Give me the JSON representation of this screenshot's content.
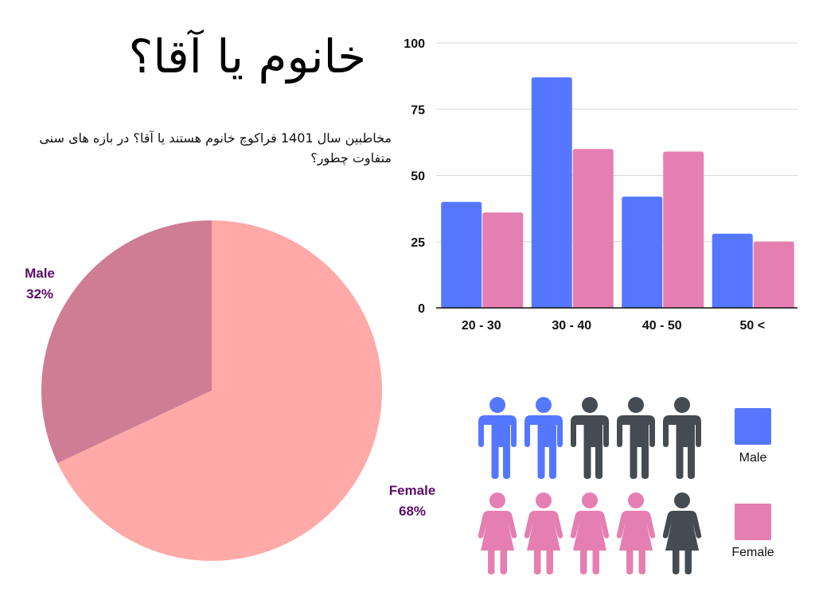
{
  "header": {
    "title": "خانوم یا آقا؟",
    "subtitle": "مخاطبین سال 1401 فراکوچ خانوم هستند یا آقا؟ در بازه های سنی متفاوت چطور؟"
  },
  "colors": {
    "male": "#5577ff",
    "female": "#e57fb1",
    "inactive": "#454b52",
    "pie_male": "#cf7c95",
    "pie_female": "#ffaaa8",
    "pie_label": "#5b0d6a",
    "grid": "#d9d9d9",
    "axis": "#111111"
  },
  "chart_data": [
    {
      "type": "pie",
      "slices": [
        {
          "label": "Male",
          "value": 32,
          "percent_label": "32%"
        },
        {
          "label": "Female",
          "value": 68,
          "percent_label": "68%"
        }
      ]
    },
    {
      "type": "bar",
      "categories": [
        "20 - 30",
        "30 - 40",
        "40 - 50",
        "50 <"
      ],
      "series": [
        {
          "name": "Male",
          "values": [
            40,
            87,
            42,
            28
          ]
        },
        {
          "name": "Female",
          "values": [
            36,
            60,
            59,
            25
          ]
        }
      ],
      "ylim": [
        0,
        100
      ],
      "yticks": [
        "0",
        "25",
        "50",
        "75",
        "100"
      ],
      "grid": true
    }
  ],
  "pictogram": {
    "male": {
      "filled": 2,
      "total": 5,
      "legend": "Male",
      "icon": "male-person-icon"
    },
    "female": {
      "filled": 4,
      "total": 5,
      "legend": "Female",
      "icon": "female-person-icon"
    }
  }
}
